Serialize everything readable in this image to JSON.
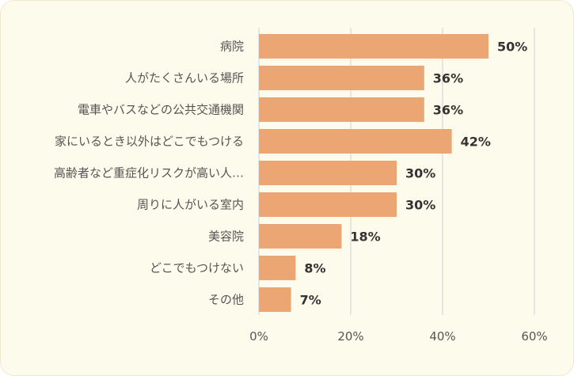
{
  "chart_data": {
    "type": "bar",
    "orientation": "horizontal",
    "categories": [
      "病院",
      "人がたくさんいる場所",
      "電車やバスなどの公共交通機関",
      "家にいるとき以外はどこでもつける",
      "高齢者など重症化リスクが高い人…",
      "周りに人がいる室内",
      "美容院",
      "どこでもつけない",
      "その他"
    ],
    "values": [
      50,
      36,
      36,
      42,
      30,
      30,
      18,
      8,
      7
    ],
    "value_labels": [
      "50%",
      "36%",
      "36%",
      "42%",
      "30%",
      "30%",
      "18%",
      "8%",
      "7%"
    ],
    "xlim": [
      0,
      60
    ],
    "x_ticks": [
      0,
      20,
      40,
      60
    ],
    "x_tick_labels": [
      "0%",
      "20%",
      "40%",
      "60%"
    ],
    "title": "",
    "xlabel": "",
    "ylabel": "",
    "grid": "vertical",
    "bar_color": "#eba673",
    "background_color": "#fdfbec"
  }
}
